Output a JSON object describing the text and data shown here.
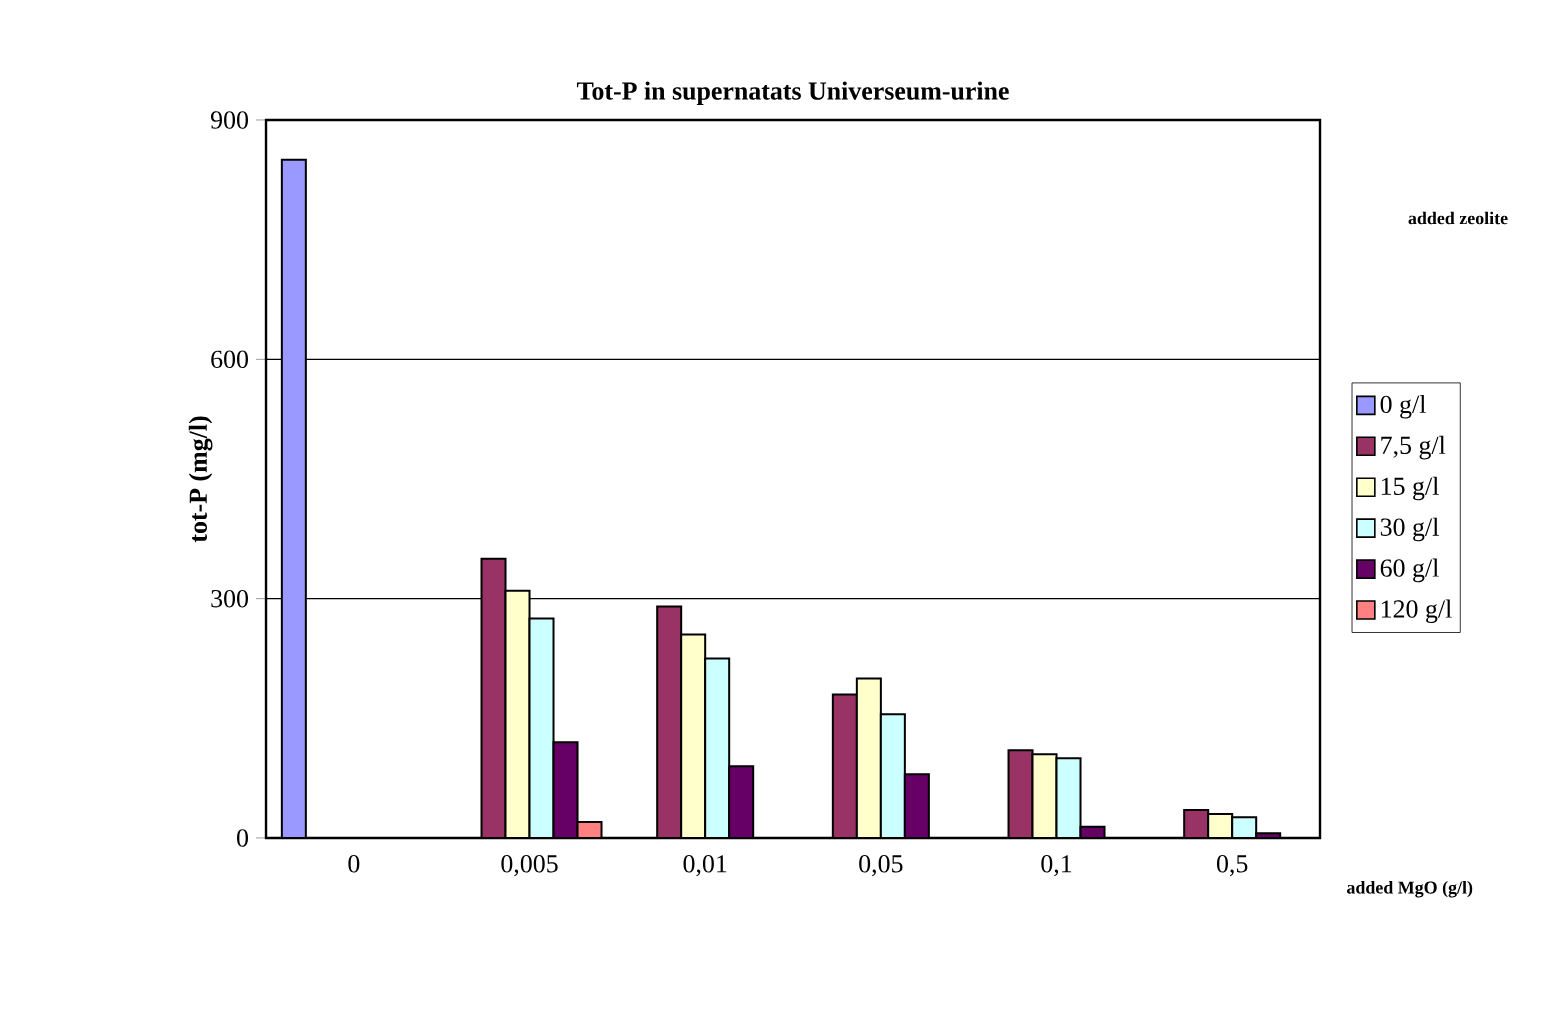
{
  "chart_data": {
    "type": "bar",
    "title": "Tot-P in supernatats Universeum-urine",
    "xlabel": "added MgO (g/l)",
    "ylabel": "tot-P (mg/l)",
    "legend_title": "added zeolite",
    "categories": [
      "0",
      "0,005",
      "0,01",
      "0,05",
      "0,1",
      "0,5"
    ],
    "series": [
      {
        "name": "0 g/l",
        "color": "#9999ff",
        "values": [
          850,
          null,
          null,
          null,
          null,
          null
        ]
      },
      {
        "name": "7,5 g/l",
        "color": "#993366",
        "values": [
          null,
          350,
          290,
          180,
          110,
          35
        ]
      },
      {
        "name": "15 g/l",
        "color": "#ffffcc",
        "values": [
          null,
          310,
          255,
          200,
          105,
          30
        ]
      },
      {
        "name": "30 g/l",
        "color": "#ccffff",
        "values": [
          null,
          275,
          225,
          155,
          100,
          26
        ]
      },
      {
        "name": "60 g/l",
        "color": "#660066",
        "values": [
          null,
          120,
          90,
          80,
          14,
          6
        ]
      },
      {
        "name": "120 g/l",
        "color": "#ff8080",
        "values": [
          null,
          20,
          null,
          null,
          null,
          null
        ]
      }
    ],
    "ylim": [
      0,
      900
    ],
    "yticks": [
      0,
      300,
      600,
      900
    ],
    "grid": "y",
    "legend": "right"
  }
}
